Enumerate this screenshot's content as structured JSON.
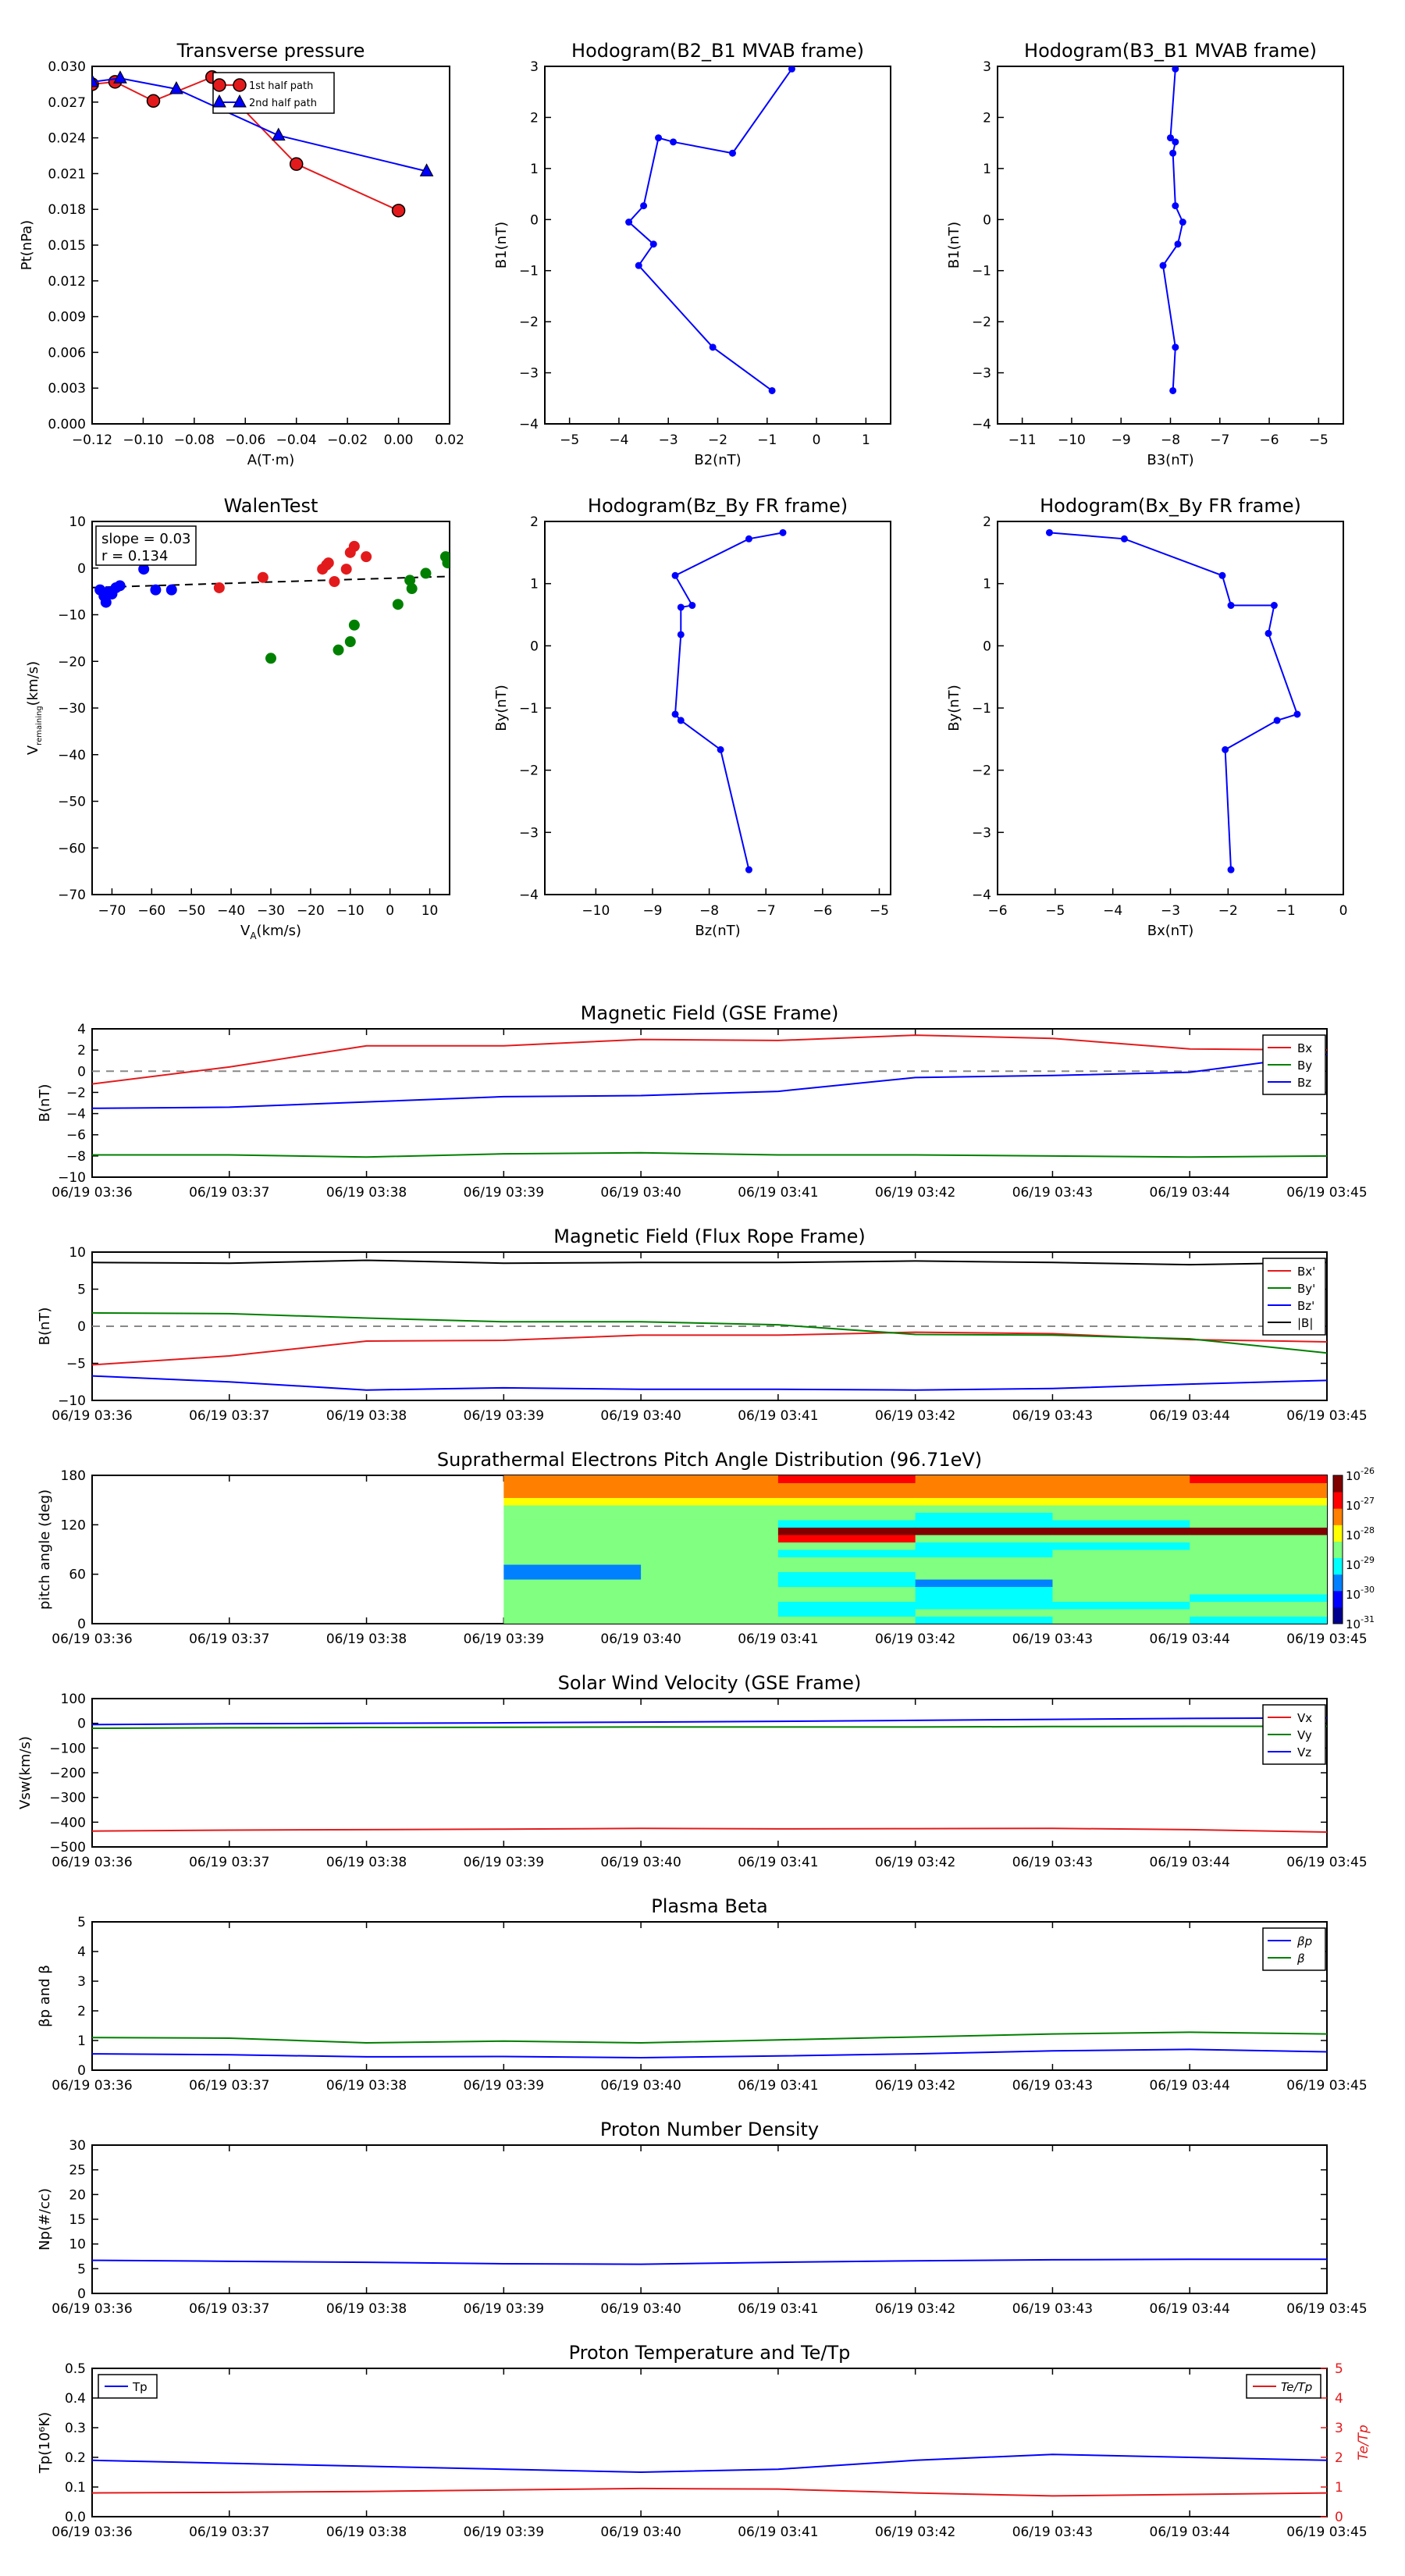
{
  "chart_data": [
    {
      "id": "transverse_pressure",
      "type": "line",
      "title": "Transverse pressure",
      "xlabel": "A(T·m)",
      "ylabel": "Pt(nPa)",
      "xlim": [
        -0.12,
        0.02
      ],
      "ylim": [
        0.0,
        0.03
      ],
      "xticks": [
        "−0.12",
        "−0.10",
        "−0.08",
        "−0.06",
        "−0.04",
        "−0.02",
        "0.00",
        "0.02"
      ],
      "yticks": [
        "0.000",
        "0.003",
        "0.006",
        "0.009",
        "0.012",
        "0.015",
        "0.018",
        "0.021",
        "0.024",
        "0.027",
        "0.030"
      ],
      "legend_position": "top-right",
      "series": [
        {
          "name": "1st half path",
          "color": "#e31a1c",
          "marker": "circle",
          "x": [
            -0.12,
            -0.111,
            -0.096,
            -0.073,
            -0.04,
            0.0
          ],
          "y": [
            0.0285,
            0.0287,
            0.0271,
            0.0291,
            0.0218,
            0.0179
          ]
        },
        {
          "name": "2nd half path",
          "color": "#0000ff",
          "marker": "triangle",
          "x": [
            -0.12,
            -0.109,
            -0.087,
            -0.047,
            0.011
          ],
          "y": [
            0.0287,
            0.029,
            0.0281,
            0.0242,
            0.0212
          ]
        }
      ]
    },
    {
      "id": "hodo_b2_b1",
      "type": "line",
      "title": "Hodogram(B2_B1 MVAB frame)",
      "xlabel": "B2(nT)",
      "ylabel": "B1(nT)",
      "xlim": [
        -5.5,
        1.5
      ],
      "ylim": [
        -4,
        3
      ],
      "xticks": [
        "−5",
        "−4",
        "−3",
        "−2",
        "−1",
        "0",
        "1"
      ],
      "yticks": [
        "−4",
        "−3",
        "−2",
        "−1",
        "0",
        "1",
        "2",
        "3"
      ],
      "series": [
        {
          "color": "#0000ff",
          "x": [
            -0.5,
            -1.7,
            -2.9,
            -3.2,
            -3.5,
            -3.8,
            -3.3,
            -3.6,
            -2.1,
            -0.9
          ],
          "y": [
            2.95,
            1.3,
            1.52,
            1.6,
            0.27,
            -0.05,
            -0.48,
            -0.9,
            -2.5,
            -3.35
          ]
        }
      ]
    },
    {
      "id": "hodo_b3_b1",
      "type": "line",
      "title": "Hodogram(B3_B1 MVAB frame)",
      "xlabel": "B3(nT)",
      "ylabel": "B1(nT)",
      "xlim": [
        -11.5,
        -4.5
      ],
      "ylim": [
        -4,
        3
      ],
      "xticks": [
        "−11",
        "−10",
        "−9",
        "−8",
        "−7",
        "−6",
        "−5"
      ],
      "yticks": [
        "−4",
        "−3",
        "−2",
        "−1",
        "0",
        "1",
        "2",
        "3"
      ],
      "series": [
        {
          "color": "#0000ff",
          "x": [
            -7.9,
            -8.0,
            -7.9,
            -7.95,
            -7.9,
            -7.75,
            -7.85,
            -8.15,
            -7.9,
            -7.95
          ],
          "y": [
            2.95,
            1.6,
            1.52,
            1.3,
            0.27,
            -0.05,
            -0.48,
            -0.9,
            -2.5,
            -3.35
          ]
        }
      ]
    },
    {
      "id": "walen_test",
      "type": "scatter",
      "title": "WalenTest",
      "xlabel": "V",
      "xlabel_sub": "A",
      "xlabel_suffix": "(km/s)",
      "ylabel": "V",
      "ylabel_sub": "remaining",
      "ylabel_suffix": "(km/s)",
      "xlim": [
        -75,
        15
      ],
      "ylim": [
        -75,
        15
      ],
      "xticks": [
        "−70",
        "−60",
        "−50",
        "−40",
        "−30",
        "−20",
        "−10",
        "0",
        "10"
      ],
      "yticks": [
        "−70",
        "−60",
        "−50",
        "−40",
        "−30",
        "−20",
        "−10",
        "0",
        "10"
      ],
      "annotation_slope": "slope = 0.03",
      "annotation_r": "r = 0.134",
      "fit_line": {
        "slope": 0.03,
        "intercept": 1.3,
        "color": "#000000"
      },
      "series": [
        {
          "color": "#0000ff",
          "x": [
            -73,
            -72,
            -71.5,
            -71,
            -70,
            -69,
            -68,
            -62,
            -59,
            -55
          ],
          "y": [
            -1.5,
            -3,
            -4.5,
            -2,
            -2.5,
            -1,
            -0.5,
            3.5,
            -1.5,
            -1.5
          ]
        },
        {
          "color": "#e31a1c",
          "x": [
            -43,
            -32,
            -17,
            -16,
            -15.5,
            -14,
            -11,
            -10,
            -9,
            -6
          ],
          "y": [
            -1,
            1.5,
            3.5,
            4.5,
            5,
            0.5,
            3.5,
            7.5,
            9,
            6.5
          ]
        },
        {
          "color": "#008000",
          "x": [
            -30,
            -13,
            -10,
            -9,
            2,
            5,
            5.5,
            9,
            14,
            14.5
          ],
          "y": [
            -18,
            -16,
            -14,
            -10,
            -5,
            0.8,
            -1.2,
            2.5,
            6.5,
            5
          ]
        }
      ]
    },
    {
      "id": "hodo_bz_by",
      "type": "line",
      "title": "Hodogram(Bz_By FR frame)",
      "xlabel": "Bz(nT)",
      "ylabel": "By(nT)",
      "xlim": [
        -10.9,
        -4.8
      ],
      "ylim": [
        -4,
        2
      ],
      "xticks": [
        "−10",
        "−9",
        "−8",
        "−7",
        "−6",
        "−5"
      ],
      "yticks": [
        "−4",
        "−3",
        "−2",
        "−1",
        "0",
        "1",
        "2"
      ],
      "series": [
        {
          "color": "#0000ff",
          "x": [
            -6.7,
            -7.3,
            -8.6,
            -8.3,
            -8.5,
            -8.5,
            -8.6,
            -8.5,
            -7.8,
            -7.3
          ],
          "y": [
            1.82,
            1.72,
            1.13,
            0.65,
            0.62,
            0.18,
            -1.1,
            -1.2,
            -1.67,
            -3.6
          ]
        }
      ]
    },
    {
      "id": "hodo_bx_by",
      "type": "line",
      "title": "Hodogram(Bx_By FR frame)",
      "xlabel": "Bx(nT)",
      "ylabel": "By(nT)",
      "xlim": [
        -6,
        0
      ],
      "ylim": [
        -4,
        2
      ],
      "xticks": [
        "−6",
        "−5",
        "−4",
        "−3",
        "−2",
        "−1",
        "0"
      ],
      "yticks": [
        "−4",
        "−3",
        "−2",
        "−1",
        "0",
        "1",
        "2"
      ],
      "series": [
        {
          "color": "#0000ff",
          "x": [
            -5.1,
            -3.8,
            -2.1,
            -1.95,
            -1.2,
            -1.3,
            -0.8,
            -1.15,
            -2.05,
            -1.95
          ],
          "y": [
            1.82,
            1.72,
            1.13,
            0.65,
            0.65,
            0.2,
            -1.1,
            -1.2,
            -1.67,
            -3.6
          ]
        }
      ]
    },
    {
      "id": "mag_gse",
      "type": "line",
      "title": "Magnetic Field (GSE Frame)",
      "ylabel": "B(nT)",
      "ylim": [
        -10,
        4
      ],
      "yticks": [
        "−10",
        "−8",
        "−6",
        "−4",
        "−2",
        "0",
        "2",
        "4"
      ],
      "x": [
        "06/19 03:36",
        "06/19 03:37",
        "06/19 03:38",
        "06/19 03:39",
        "06/19 03:40",
        "06/19 03:41",
        "06/19 03:42",
        "06/19 03:43",
        "06/19 03:44",
        "06/19 03:45"
      ],
      "zero_line": true,
      "legend_position": "top-right",
      "series": [
        {
          "name": "Bx",
          "color": "#e31a1c",
          "values": [
            -1.2,
            0.4,
            2.4,
            2.4,
            3.0,
            2.9,
            3.4,
            3.1,
            2.1,
            2.0
          ]
        },
        {
          "name": "By",
          "color": "#008000",
          "values": [
            -7.9,
            -7.9,
            -8.1,
            -7.8,
            -7.7,
            -7.9,
            -7.9,
            -8.0,
            -8.1,
            -8.0
          ]
        },
        {
          "name": "Bz",
          "color": "#0000ff",
          "values": [
            -3.5,
            -3.4,
            -2.9,
            -2.4,
            -2.3,
            -1.9,
            -0.6,
            -0.4,
            -0.1,
            1.6
          ]
        }
      ]
    },
    {
      "id": "mag_fr",
      "type": "line",
      "title": "Magnetic Field (Flux Rope Frame)",
      "ylabel": "B(nT)",
      "ylim": [
        -10,
        10
      ],
      "yticks": [
        "−10",
        "−5",
        "0",
        "5",
        "10"
      ],
      "x": [
        "06/19 03:36",
        "06/19 03:37",
        "06/19 03:38",
        "06/19 03:39",
        "06/19 03:40",
        "06/19 03:41",
        "06/19 03:42",
        "06/19 03:43",
        "06/19 03:44",
        "06/19 03:45"
      ],
      "zero_line": true,
      "legend_position": "top-right",
      "series": [
        {
          "name": "Bx'",
          "color": "#e31a1c",
          "values": [
            -5.2,
            -4.0,
            -2.0,
            -1.9,
            -1.2,
            -1.2,
            -0.8,
            -1.0,
            -1.8,
            -2.1
          ]
        },
        {
          "name": "By'",
          "color": "#008000",
          "values": [
            1.8,
            1.7,
            1.1,
            0.6,
            0.6,
            0.2,
            -1.1,
            -1.2,
            -1.7,
            -3.6
          ]
        },
        {
          "name": "Bz'",
          "color": "#0000ff",
          "values": [
            -6.7,
            -7.5,
            -8.6,
            -8.3,
            -8.5,
            -8.5,
            -8.6,
            -8.4,
            -7.8,
            -7.3
          ]
        },
        {
          "name": "|B|",
          "color": "#000000",
          "values": [
            8.6,
            8.5,
            8.9,
            8.5,
            8.6,
            8.6,
            8.8,
            8.6,
            8.3,
            8.6
          ]
        }
      ]
    },
    {
      "id": "pad",
      "type": "heatmap",
      "title": "Suprathermal Electrons Pitch Angle Distribution (96.71eV)",
      "ylabel": "pitch angle (deg)",
      "ylim": [
        0,
        180
      ],
      "yticks": [
        "0",
        "60",
        "120",
        "180"
      ],
      "x": [
        "06/19 03:36",
        "06/19 03:37",
        "06/19 03:38",
        "06/19 03:39",
        "06/19 03:40",
        "06/19 03:41",
        "06/19 03:42",
        "06/19 03:43",
        "06/19 03:44",
        "06/19 03:45"
      ],
      "data_start_minute": 3,
      "colorbar_ticks": [
        "10",
        "10",
        "10",
        "10",
        "10",
        "10"
      ],
      "colorbar_exponents": [
        "-26",
        "-27",
        "-28",
        "-29",
        "-30",
        "-31"
      ],
      "colormap": [
        "#00008f",
        "#0000ff",
        "#0080ff",
        "#00ffff",
        "#80ff80",
        "#ffff00",
        "#ff8000",
        "#ff0000",
        "#800000"
      ],
      "levels": [
        [
          0.45,
          0.5,
          0.45,
          0.5,
          0.45,
          0.5,
          0.2,
          0.2,
          0.5,
          0.5,
          0.5,
          0.45,
          0.5,
          0.55,
          0.5,
          0.55,
          0.65,
          0.7,
          0.7,
          0.75
        ],
        [
          0.5,
          0.5,
          0.55,
          0.45,
          0.5,
          0.5,
          0.45,
          0.45,
          0.5,
          0.5,
          0.55,
          0.55,
          0.5,
          0.45,
          0.5,
          0.55,
          0.6,
          0.7,
          0.7,
          0.8
        ],
        [
          0.45,
          0.4,
          0.35,
          0.45,
          0.5,
          0.35,
          0.4,
          0.45,
          0.5,
          0.4,
          0.45,
          0.9,
          0.95,
          0.4,
          0.45,
          0.5,
          0.6,
          0.7,
          0.8,
          0.85
        ],
        [
          0.4,
          0.45,
          0.4,
          0.35,
          0.4,
          0.3,
          0.45,
          0.5,
          0.45,
          0.4,
          0.35,
          0.5,
          0.95,
          0.35,
          0.4,
          0.5,
          0.6,
          0.7,
          0.75,
          0.8
        ],
        [
          0.45,
          0.45,
          0.4,
          0.45,
          0.5,
          0.45,
          0.45,
          0.5,
          0.5,
          0.45,
          0.4,
          0.45,
          0.95,
          0.4,
          0.5,
          0.55,
          0.6,
          0.7,
          0.8,
          0.8
        ],
        [
          0.4,
          0.45,
          0.45,
          0.4,
          0.45,
          0.5,
          0.45,
          0.5,
          0.45,
          0.45,
          0.5,
          0.5,
          0.95,
          0.45,
          0.45,
          0.55,
          0.65,
          0.75,
          0.75,
          0.85
        ]
      ]
    },
    {
      "id": "velocity",
      "type": "line",
      "title": "Solar Wind Velocity (GSE Frame)",
      "ylabel": "Vsw(km/s)",
      "ylim": [
        -500,
        100
      ],
      "yticks": [
        "−500",
        "−400",
        "−300",
        "−200",
        "−100",
        "0",
        "100"
      ],
      "x": [
        "06/19 03:36",
        "06/19 03:37",
        "06/19 03:38",
        "06/19 03:39",
        "06/19 03:40",
        "06/19 03:41",
        "06/19 03:42",
        "06/19 03:43",
        "06/19 03:44",
        "06/19 03:45"
      ],
      "legend_position": "top-right",
      "series": [
        {
          "name": "Vx",
          "color": "#e31a1c",
          "values": [
            -436,
            -432,
            -430,
            -428,
            -425,
            -427,
            -426,
            -425,
            -430,
            -440
          ]
        },
        {
          "name": "Vy",
          "color": "#008000",
          "values": [
            -20,
            -18,
            -17,
            -16,
            -15,
            -15,
            -15,
            -13,
            -12,
            -12
          ]
        },
        {
          "name": "Vz",
          "color": "#0000ff",
          "values": [
            -5,
            -2,
            0,
            2,
            5,
            8,
            12,
            16,
            20,
            22
          ]
        }
      ]
    },
    {
      "id": "beta",
      "type": "line",
      "title": "Plasma Beta",
      "ylabel": "βp and β",
      "ylim": [
        0,
        5
      ],
      "yticks": [
        "0",
        "1",
        "2",
        "3",
        "4",
        "5"
      ],
      "x": [
        "06/19 03:36",
        "06/19 03:37",
        "06/19 03:38",
        "06/19 03:39",
        "06/19 03:40",
        "06/19 03:41",
        "06/19 03:42",
        "06/19 03:43",
        "06/19 03:44",
        "06/19 03:45"
      ],
      "legend_position": "top-right",
      "series": [
        {
          "name": "βp",
          "color": "#0000ff",
          "values": [
            0.55,
            0.52,
            0.45,
            0.46,
            0.42,
            0.48,
            0.55,
            0.65,
            0.7,
            0.62
          ]
        },
        {
          "name": "β",
          "color": "#008000",
          "values": [
            1.1,
            1.08,
            0.92,
            0.98,
            0.92,
            1.02,
            1.12,
            1.22,
            1.28,
            1.22
          ]
        }
      ]
    },
    {
      "id": "density",
      "type": "line",
      "title": "Proton Number Density",
      "ylabel": "Np(#/cc)",
      "ylim": [
        0,
        30
      ],
      "yticks": [
        "0",
        "5",
        "10",
        "15",
        "20",
        "25",
        "30"
      ],
      "x": [
        "06/19 03:36",
        "06/19 03:37",
        "06/19 03:38",
        "06/19 03:39",
        "06/19 03:40",
        "06/19 03:41",
        "06/19 03:42",
        "06/19 03:43",
        "06/19 03:44",
        "06/19 03:45"
      ],
      "series": [
        {
          "color": "#0000ff",
          "values": [
            6.7,
            6.5,
            6.3,
            6.0,
            5.9,
            6.3,
            6.6,
            6.8,
            6.9,
            6.9
          ]
        }
      ]
    },
    {
      "id": "temperature",
      "type": "line",
      "title": "Proton Temperature and Te/Tp",
      "ylabel": "Tp(10⁶K)",
      "ylabel_right": "Te/Tp",
      "ylim": [
        0,
        0.5
      ],
      "ylim_right": [
        0,
        5
      ],
      "yticks": [
        "0.0",
        "0.1",
        "0.2",
        "0.3",
        "0.4",
        "0.5"
      ],
      "yticks_right": [
        "0",
        "1",
        "2",
        "3",
        "4",
        "5"
      ],
      "x": [
        "06/19 03:36",
        "06/19 03:37",
        "06/19 03:38",
        "06/19 03:39",
        "06/19 03:40",
        "06/19 03:41",
        "06/19 03:42",
        "06/19 03:43",
        "06/19 03:44",
        "06/19 03:45"
      ],
      "series": [
        {
          "name": "Tp",
          "axis": "left",
          "color": "#0000ff",
          "legend_position": "top-left",
          "values": [
            0.19,
            0.18,
            0.17,
            0.16,
            0.15,
            0.16,
            0.19,
            0.21,
            0.2,
            0.19
          ]
        },
        {
          "name": "Te/Tp",
          "axis": "right",
          "color": "#e31a1c",
          "legend_position": "top-right",
          "values": [
            0.8,
            0.82,
            0.85,
            0.9,
            0.95,
            0.93,
            0.8,
            0.7,
            0.75,
            0.8
          ]
        }
      ]
    }
  ]
}
